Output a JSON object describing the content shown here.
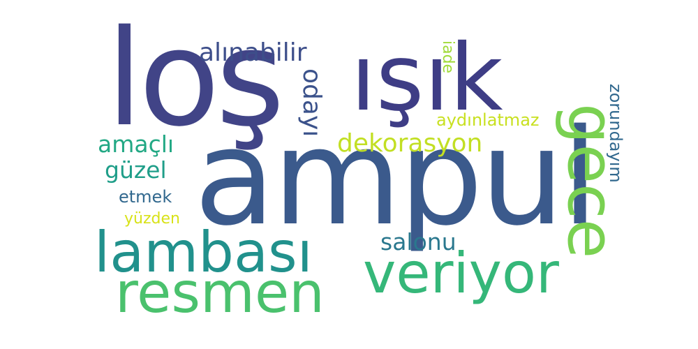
{
  "cloud": {
    "words": [
      {
        "key": "los",
        "text": "loş",
        "color": "#414487"
      },
      {
        "key": "isik",
        "text": "ışık",
        "color": "#3e3d85"
      },
      {
        "key": "ampul",
        "text": "ampul",
        "color": "#3b5a8c"
      },
      {
        "key": "gece",
        "text": "gece",
        "color": "#7ad151"
      },
      {
        "key": "alinabilir",
        "text": "alınabilir",
        "color": "#3d4e8a"
      },
      {
        "key": "odayi",
        "text": "odayı",
        "color": "#3b528b"
      },
      {
        "key": "iade",
        "text": "iade",
        "color": "#a0da39"
      },
      {
        "key": "aydin",
        "text": "aydınlatmaz",
        "color": "#c8e020"
      },
      {
        "key": "zorunda",
        "text": "zorundayım",
        "color": "#31688e"
      },
      {
        "key": "amacli",
        "text": "amaçlı",
        "color": "#22a884"
      },
      {
        "key": "dekor",
        "text": "dekorasyon",
        "color": "#c2df23"
      },
      {
        "key": "guzel",
        "text": "güzel",
        "color": "#1f9e89"
      },
      {
        "key": "etmek",
        "text": "etmek",
        "color": "#31688e"
      },
      {
        "key": "yuzden",
        "text": "yüzden",
        "color": "#d8e219"
      },
      {
        "key": "lambasi",
        "text": "lambası",
        "color": "#21918c"
      },
      {
        "key": "salonu",
        "text": "salonu",
        "color": "#2a788e"
      },
      {
        "key": "resmen",
        "text": "resmen",
        "color": "#4ac16d"
      },
      {
        "key": "veriyor",
        "text": "veriyor",
        "color": "#35b779"
      }
    ]
  }
}
